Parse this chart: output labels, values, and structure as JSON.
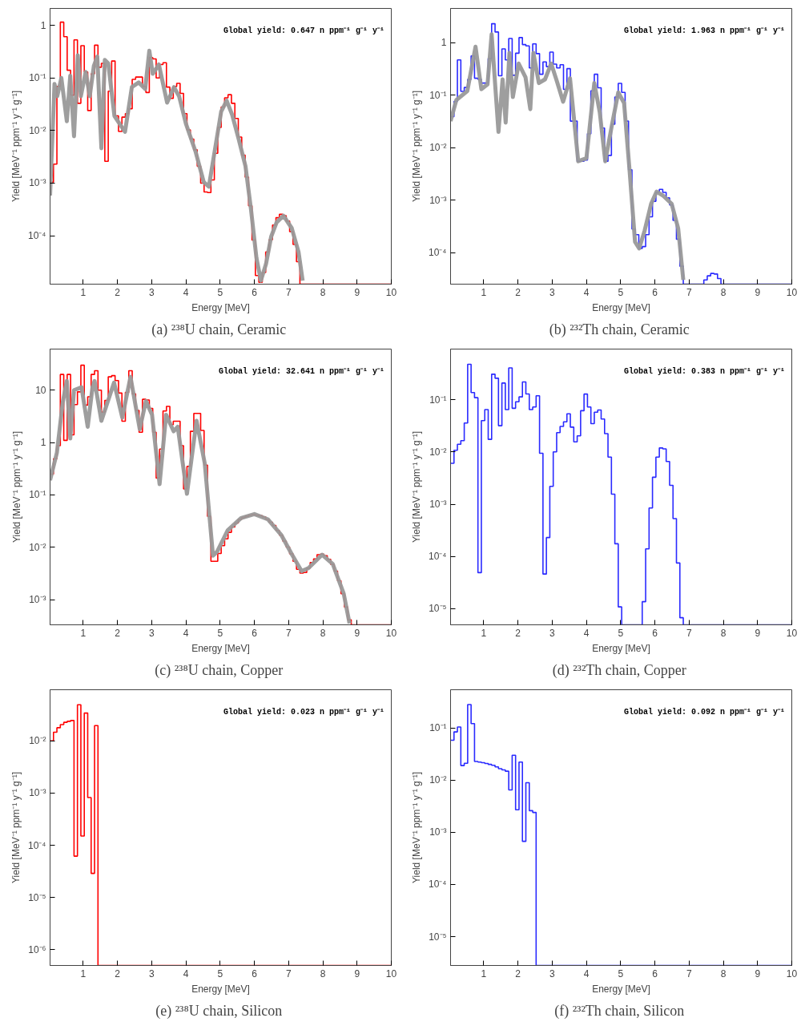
{
  "chart_data": [
    {
      "type": "histogram",
      "log": true,
      "title": "(a)  ²³⁸U chain, Ceramic",
      "xlabel": "Energy [MeV]",
      "ylabel": "Yield [MeV⁻¹ ppm⁻¹ y⁻¹ g⁻¹]",
      "annotations": [
        "Global yield: 0.647 n ppm⁻¹ g⁻¹ y⁻¹"
      ],
      "xlim": [
        0.03,
        10
      ],
      "ylim": [
        1.2e-05,
        2.1
      ],
      "xticks": [
        1,
        2,
        3,
        4,
        5,
        6,
        7,
        8,
        9,
        10
      ],
      "yticks": [
        {
          "value": 0.0001,
          "label": "10⁻⁴"
        },
        {
          "value": 0.001,
          "label": "10⁻³"
        },
        {
          "value": 0.01,
          "label": "10⁻²"
        },
        {
          "value": 0.1,
          "label": "10⁻¹"
        },
        1
      ],
      "bins": [
        0.03,
        0.13,
        0.23,
        0.33,
        0.43,
        0.53,
        0.63,
        0.73,
        0.83,
        0.93,
        1.03,
        1.13,
        1.23,
        1.33,
        1.43,
        1.53,
        1.63,
        1.73,
        1.83,
        1.93,
        2.03,
        2.13,
        2.23,
        2.33,
        2.43,
        2.53,
        2.63,
        2.73,
        2.83,
        2.93,
        3.03,
        3.13,
        3.23,
        3.33,
        3.43,
        3.53,
        3.63,
        3.73,
        3.83,
        3.93,
        4.03,
        4.13,
        4.23,
        4.33,
        4.43,
        4.53,
        4.63,
        4.73,
        4.83,
        4.93,
        5.03,
        5.13,
        5.23,
        5.33,
        5.43,
        5.53,
        5.63,
        5.73,
        5.83,
        5.93,
        6.03,
        6.13,
        6.23,
        6.33,
        6.43,
        6.53,
        6.63,
        6.73,
        6.83,
        6.93,
        7.03,
        7.13,
        7.23,
        7.33,
        10
      ],
      "series": [
        {
          "color": "#ff0000",
          "values": [
            0.00105,
            0.0023,
            0.069,
            1.15,
            0.61,
            0.14,
            0.047,
            0.53,
            0.033,
            0.41,
            0.13,
            0.024,
            0.12,
            0.42,
            0.16,
            0.19,
            0.0026,
            0.056,
            0.21,
            0.019,
            0.0096,
            0.018,
            0.021,
            0.026,
            0.094,
            0.104,
            0.104,
            0.069,
            0.053,
            0.245,
            0.23,
            0.1,
            0.18,
            0.195,
            0.067,
            0.041,
            0.069,
            0.079,
            0.051,
            0.021,
            0.0103,
            0.0069,
            0.0043,
            0.0021,
            0.001,
            0.00068,
            0.00066,
            0.00115,
            0.0037,
            0.0115,
            0.028,
            0.042,
            0.048,
            0.033,
            0.017,
            0.0075,
            0.0034,
            0.0013,
            0.00037,
            8.3e-05,
            1.75e-05,
            1.3e-05,
            2e-05,
            4.9e-05,
            8.4e-05,
            0.00016,
            0.00022,
            0.000255,
            0.00024,
            0.00019,
            0.00012,
            6.8e-05,
            3.2e-05,
            null
          ]
        },
        {
          "type": "line",
          "color": "#999999",
          "x": [
            0.03,
            0.16,
            0.24,
            0.36,
            0.52,
            0.62,
            0.73,
            0.84,
            0.93,
            1.07,
            1.19,
            1.31,
            1.41,
            1.53,
            1.63,
            1.73,
            1.91,
            2.06,
            2.22,
            2.42,
            2.62,
            2.81,
            2.93,
            3.03,
            3.21,
            3.45,
            3.65,
            3.8,
            4.0,
            4.28,
            4.52,
            4.67,
            4.87,
            5.03,
            5.19,
            5.35,
            5.54,
            5.74,
            5.9,
            6.06,
            6.19,
            6.34,
            6.49,
            6.65,
            6.85,
            7.09,
            7.29,
            7.41
          ],
          "values": [
            0.00058,
            0.077,
            0.045,
            0.1,
            0.015,
            0.11,
            0.0078,
            0.27,
            0.045,
            0.13,
            0.045,
            0.17,
            0.255,
            0.0046,
            0.22,
            0.19,
            0.019,
            0.0135,
            0.0095,
            0.067,
            0.082,
            0.062,
            0.33,
            0.12,
            0.18,
            0.034,
            0.067,
            0.045,
            0.0135,
            0.004,
            0.00105,
            0.00086,
            0.0053,
            0.023,
            0.037,
            0.02,
            0.0069,
            0.0021,
            0.00032,
            3.8e-05,
            1.4e-05,
            2.9e-05,
            9.6e-05,
            0.00018,
            0.00024,
            0.00014,
            4.9e-05,
            1.4e-05
          ]
        }
      ]
    },
    {
      "type": "histogram",
      "log": true,
      "title": "(b)  ²³²Th chain, Ceramic",
      "xlabel": "Energy [MeV]",
      "ylabel": "Yield [MeV⁻¹ ppm⁻¹ y⁻¹ g⁻¹]",
      "annotations": [
        "Global yield: 1.963 n ppm⁻¹ g⁻¹ y⁻¹"
      ],
      "xlim": [
        0.03,
        10
      ],
      "ylim": [
        2.5e-05,
        4.5
      ],
      "xticks": [
        1,
        2,
        3,
        4,
        5,
        6,
        7,
        8,
        9,
        10
      ],
      "yticks": [
        {
          "value": 0.0001,
          "label": "10⁻⁴"
        },
        {
          "value": 0.001,
          "label": "10⁻³"
        },
        {
          "value": 0.01,
          "label": "10⁻²"
        },
        {
          "value": 0.1,
          "label": "10⁻¹"
        },
        1
      ],
      "bins": [
        0.03,
        0.13,
        0.23,
        0.33,
        0.43,
        0.53,
        0.63,
        0.73,
        0.83,
        0.93,
        1.03,
        1.13,
        1.23,
        1.33,
        1.43,
        1.53,
        1.63,
        1.73,
        1.83,
        1.93,
        2.03,
        2.13,
        2.23,
        2.33,
        2.43,
        2.53,
        2.63,
        2.73,
        2.83,
        2.93,
        3.03,
        3.13,
        3.23,
        3.33,
        3.43,
        3.53,
        3.63,
        3.73,
        3.83,
        3.93,
        4.03,
        4.13,
        4.23,
        4.33,
        4.43,
        4.53,
        4.63,
        4.73,
        4.83,
        4.93,
        5.03,
        5.13,
        5.23,
        5.33,
        5.43,
        5.53,
        5.63,
        5.73,
        5.83,
        5.93,
        6.03,
        6.13,
        6.23,
        6.33,
        6.43,
        6.53,
        6.63,
        6.73,
        6.83,
        7.43,
        7.53,
        7.63,
        7.73,
        7.83,
        7.93,
        10
      ],
      "series": [
        {
          "color": "#2a2aff",
          "values": [
            0.039,
            0.076,
            0.47,
            0.118,
            0.14,
            0.2,
            0.56,
            0.21,
            0.2,
            0.17,
            0.17,
            0.5,
            2.3,
            1.6,
            0.235,
            0.76,
            0.47,
            1.2,
            0.24,
            0.63,
            1.25,
            0.92,
            0.87,
            0.33,
            0.95,
            0.62,
            0.25,
            0.43,
            0.35,
            0.66,
            0.39,
            0.33,
            0.38,
            0.129,
            0.32,
            0.032,
            0.032,
            0.0055,
            0.0055,
            0.0058,
            0.0184,
            0.121,
            0.25,
            0.138,
            0.0236,
            0.0055,
            0.0071,
            0.028,
            0.092,
            0.168,
            0.113,
            0.032,
            0.0038,
            0.00028,
            0.00022,
            0.00012,
            0.00013,
            0.00022,
            0.00048,
            0.00095,
            0.0014,
            0.0016,
            0.0014,
            0.0011,
            0.00081,
            0.00041,
            0.00018,
            5.5e-05,
            null,
            3e-05,
            3.6e-05,
            4e-05,
            3.9e-05,
            3.2e-05,
            null
          ]
        },
        {
          "type": "line",
          "color": "#999999",
          "x": [
            0.03,
            0.2,
            0.52,
            0.76,
            0.93,
            1.11,
            1.23,
            1.43,
            1.55,
            1.64,
            1.75,
            1.85,
            2.02,
            2.22,
            2.36,
            2.45,
            2.61,
            2.79,
            2.97,
            3.13,
            3.32,
            3.52,
            3.76,
            4.0,
            4.23,
            4.39,
            4.55,
            4.75,
            4.93,
            5.1,
            5.26,
            5.42,
            5.54,
            5.7,
            5.89,
            6.05,
            6.25,
            6.49,
            6.68,
            6.83
          ],
          "values": [
            0.032,
            0.081,
            0.12,
            0.84,
            0.13,
            0.16,
            1.45,
            0.02,
            0.2,
            0.03,
            0.64,
            0.092,
            0.4,
            0.22,
            0.054,
            0.64,
            0.17,
            0.2,
            0.4,
            0.19,
            0.075,
            0.21,
            0.0055,
            0.0063,
            0.17,
            0.047,
            0.0055,
            0.028,
            0.113,
            0.071,
            0.0037,
            0.00016,
            0.00012,
            0.00026,
            0.00085,
            0.00145,
            0.0012,
            0.00085,
            0.00029,
            3e-05
          ]
        }
      ]
    },
    {
      "type": "histogram",
      "log": true,
      "title": "(c)  ²³⁸U chain, Copper",
      "xlabel": "Energy [MeV]",
      "ylabel": "Yield [MeV⁻¹ ppm⁻¹ y⁻¹ g⁻¹]",
      "annotations": [
        "Global yield: 32.641 n ppm⁻¹ g⁻¹ y⁻¹"
      ],
      "xlim": [
        0.03,
        10
      ],
      "ylim": [
        0.00033,
        61
      ],
      "xticks": [
        1,
        2,
        3,
        4,
        5,
        6,
        7,
        8,
        9,
        10
      ],
      "yticks": [
        {
          "value": 0.001,
          "label": "10⁻³"
        },
        {
          "value": 0.01,
          "label": "10⁻²"
        },
        {
          "value": 0.1,
          "label": "10⁻¹"
        },
        1,
        10
      ],
      "bins": [
        0.03,
        0.13,
        0.23,
        0.33,
        0.43,
        0.53,
        0.63,
        0.73,
        0.83,
        0.93,
        1.03,
        1.13,
        1.23,
        1.33,
        1.43,
        1.53,
        1.63,
        1.73,
        1.83,
        1.93,
        2.03,
        2.13,
        2.23,
        2.33,
        2.43,
        2.53,
        2.63,
        2.73,
        2.83,
        2.93,
        3.03,
        3.13,
        3.23,
        3.33,
        3.43,
        3.53,
        3.63,
        3.73,
        3.83,
        3.93,
        4.03,
        4.13,
        4.23,
        4.33,
        4.43,
        4.53,
        4.63,
        4.73,
        4.83,
        4.93,
        5.03,
        5.13,
        5.23,
        5.33,
        5.43,
        5.53,
        5.63,
        5.73,
        5.83,
        5.93,
        6.03,
        6.13,
        6.23,
        6.33,
        6.43,
        6.53,
        6.63,
        6.73,
        6.83,
        6.93,
        7.03,
        7.13,
        7.23,
        7.33,
        7.43,
        7.53,
        7.63,
        7.73,
        7.83,
        7.93,
        8.03,
        8.13,
        8.23,
        8.33,
        8.43,
        8.53,
        8.63,
        8.73,
        8.83,
        10
      ],
      "series": [
        {
          "color": "#ff0000",
          "values": [
            0.25,
            0.49,
            0.87,
            20,
            1.1,
            20,
            1.4,
            5.3,
            9.3,
            30,
            5.2,
            7.5,
            20,
            23.5,
            10,
            3.8,
            6.4,
            18,
            19,
            15.3,
            8.8,
            2.55,
            9.1,
            23.5,
            8.5,
            4.1,
            1.57,
            6.7,
            6.5,
            4.5,
            1.57,
            0.21,
            0.75,
            4.0,
            4.9,
            2.2,
            2.55,
            2.55,
            0.87,
            0.13,
            0.35,
            1.64,
            3.6,
            3.6,
            1.7,
            0.37,
            0.039,
            0.0054,
            0.0054,
            0.0076,
            0.0107,
            0.0145,
            0.0193,
            0.0244,
            0.029,
            0.034,
            0.037,
            0.039,
            0.041,
            0.042,
            0.041,
            0.04,
            0.038,
            0.034,
            0.03,
            0.026,
            0.021,
            0.017,
            0.0131,
            0.0101,
            0.0075,
            0.0054,
            0.0038,
            0.0032,
            0.0033,
            0.004,
            0.0051,
            0.006,
            0.0072,
            0.0074,
            0.0069,
            0.0059,
            0.0047,
            0.0035,
            0.0023,
            0.0013,
            0.00072,
            0.00041,
            null
          ]
        },
        {
          "type": "line",
          "color": "#999999",
          "x": [
            0.03,
            0.23,
            0.4,
            0.52,
            0.62,
            0.73,
            0.95,
            1.13,
            1.27,
            1.33,
            1.53,
            1.9,
            2.14,
            2.38,
            2.65,
            2.83,
            3.01,
            3.23,
            3.42,
            3.64,
            3.76,
            4.03,
            4.31,
            4.55,
            4.79,
            4.91,
            5.22,
            5.61,
            6.0,
            6.4,
            6.79,
            7.1,
            7.38,
            7.58,
            7.98,
            8.29,
            8.61,
            8.78
          ],
          "values": [
            0.19,
            0.64,
            5.8,
            15,
            1.2,
            10,
            11.4,
            2.0,
            11.4,
            15,
            2.6,
            14,
            3.0,
            18,
            1.8,
            6.2,
            3.4,
            0.16,
            3.4,
            1.64,
            2.0,
            0.105,
            2.6,
            0.4,
            0.0069,
            0.0082,
            0.021,
            0.036,
            0.043,
            0.034,
            0.017,
            0.0072,
            0.0035,
            0.004,
            0.0072,
            0.0048,
            0.0013,
            0.00035
          ]
        }
      ]
    },
    {
      "type": "histogram",
      "log": true,
      "title": "(d)  ²³²Th chain, Copper",
      "xlabel": "Energy [MeV]",
      "ylabel": "Yield [MeV⁻¹ ppm⁻¹ y⁻¹ g⁻¹]",
      "annotations": [
        "Global yield: 0.383 n ppm⁻¹ g⁻¹ y⁻¹"
      ],
      "xlim": [
        0.03,
        10
      ],
      "ylim": [
        4.9e-06,
        0.94
      ],
      "xticks": [
        1,
        2,
        3,
        4,
        5,
        6,
        7,
        8,
        9,
        10
      ],
      "yticks": [
        {
          "value": 1e-05,
          "label": "10⁻⁵"
        },
        {
          "value": 0.0001,
          "label": "10⁻⁴"
        },
        {
          "value": 0.001,
          "label": "10⁻³"
        },
        {
          "value": 0.01,
          "label": "10⁻²"
        },
        {
          "value": 0.1,
          "label": "10⁻¹"
        }
      ],
      "bins": [
        0.03,
        0.13,
        0.23,
        0.33,
        0.43,
        0.53,
        0.63,
        0.73,
        0.83,
        0.93,
        1.03,
        1.13,
        1.23,
        1.33,
        1.43,
        1.53,
        1.63,
        1.73,
        1.83,
        1.93,
        2.03,
        2.13,
        2.23,
        2.33,
        2.43,
        2.53,
        2.63,
        2.73,
        2.83,
        2.93,
        3.03,
        3.13,
        3.23,
        3.33,
        3.43,
        3.53,
        3.63,
        3.73,
        3.83,
        3.93,
        4.03,
        4.13,
        4.23,
        4.33,
        4.43,
        4.53,
        4.63,
        4.73,
        4.83,
        4.93,
        5.03,
        5.63,
        5.73,
        5.83,
        5.93,
        6.03,
        6.13,
        6.23,
        6.33,
        6.43,
        6.53,
        6.63,
        6.73,
        6.83,
        10
      ],
      "series": [
        {
          "color": "#2a2aff",
          "values": [
            0.0061,
            0.0108,
            0.0141,
            0.0165,
            0.036,
            0.48,
            0.138,
            0.11,
            4.9e-05,
            0.04,
            0.065,
            0.0175,
            0.31,
            0.26,
            0.032,
            0.21,
            0.065,
            0.41,
            0.069,
            0.092,
            0.114,
            0.22,
            0.13,
            0.065,
            0.073,
            0.12,
            0.0095,
            4.6e-05,
            0.00023,
            0.0022,
            0.0101,
            0.0235,
            0.031,
            0.038,
            0.054,
            0.03,
            0.0157,
            0.0205,
            0.062,
            0.129,
            0.073,
            0.035,
            0.058,
            0.064,
            0.043,
            0.0225,
            0.008,
            0.00156,
            0.000175,
            1.08e-05,
            null,
            1.36e-05,
            0.00014,
            0.00085,
            0.0033,
            0.008,
            0.012,
            0.0115,
            0.0066,
            0.0023,
            0.00053,
            7.5e-05,
            6.7e-06,
            null
          ]
        }
      ]
    },
    {
      "type": "histogram",
      "log": true,
      "title": "(e)  ²³⁸U chain, Silicon",
      "xlabel": "Energy [MeV]",
      "ylabel": "Yield [MeV⁻¹ ppm⁻¹ y⁻¹ g⁻¹]",
      "annotations": [
        "Global yield: 0.023 n ppm⁻¹ g⁻¹ y⁻¹"
      ],
      "xlim": [
        0.03,
        10
      ],
      "ylim": [
        5e-07,
        0.095
      ],
      "xticks": [
        1,
        2,
        3,
        4,
        5,
        6,
        7,
        8,
        9,
        10
      ],
      "yticks": [
        {
          "value": 1e-06,
          "label": "10⁻⁶"
        },
        {
          "value": 1e-05,
          "label": "10⁻⁵"
        },
        {
          "value": 0.0001,
          "label": "10⁻⁴"
        },
        {
          "value": 0.001,
          "label": "10⁻³"
        },
        {
          "value": 0.01,
          "label": "10⁻²"
        }
      ],
      "bins": [
        0.03,
        0.13,
        0.23,
        0.33,
        0.43,
        0.53,
        0.63,
        0.73,
        0.83,
        0.93,
        1.03,
        1.13,
        1.23,
        1.33,
        1.43,
        10
      ],
      "series": [
        {
          "color": "#ff0000",
          "values": [
            0.01,
            0.0146,
            0.0178,
            0.0204,
            0.0226,
            0.0236,
            0.0245,
            6.2e-05,
            0.049,
            0.00015,
            0.034,
            0.00082,
            2.9e-05,
            0.0195,
            null
          ]
        }
      ]
    },
    {
      "type": "histogram",
      "log": true,
      "title": "(f)  ²³²Th chain, Silicon",
      "xlabel": "Energy [MeV]",
      "ylabel": "Yield [MeV⁻¹ ppm⁻¹ y⁻¹ g⁻¹]",
      "annotations": [
        "Global yield: 0.092 n ppm⁻¹ g⁻¹ y⁻¹"
      ],
      "xlim": [
        0.03,
        10
      ],
      "ylim": [
        2.8e-06,
        0.54
      ],
      "xticks": [
        1,
        2,
        3,
        4,
        5,
        6,
        7,
        8,
        9,
        10
      ],
      "yticks": [
        {
          "value": 1e-05,
          "label": "10⁻⁵"
        },
        {
          "value": 0.0001,
          "label": "10⁻⁴"
        },
        {
          "value": 0.001,
          "label": "10⁻³"
        },
        {
          "value": 0.01,
          "label": "10⁻²"
        },
        {
          "value": 0.1,
          "label": "10⁻¹"
        }
      ],
      "bins": [
        0.03,
        0.13,
        0.23,
        0.33,
        0.43,
        0.53,
        0.63,
        0.73,
        0.83,
        0.93,
        1.03,
        1.13,
        1.23,
        1.33,
        1.43,
        1.53,
        1.63,
        1.73,
        1.83,
        1.93,
        2.03,
        2.13,
        2.23,
        2.33,
        2.43,
        2.53,
        10
      ],
      "series": [
        {
          "color": "#2a2aff",
          "values": [
            0.058,
            0.084,
            0.104,
            0.019,
            0.021,
            0.28,
            0.121,
            0.0228,
            0.0222,
            0.0216,
            0.0208,
            0.02,
            0.0192,
            0.0179,
            0.0166,
            0.0157,
            0.0148,
            0.0065,
            0.03,
            0.0027,
            0.0222,
            0.00067,
            0.0089,
            0.0026,
            0.0024,
            null
          ]
        }
      ]
    }
  ]
}
